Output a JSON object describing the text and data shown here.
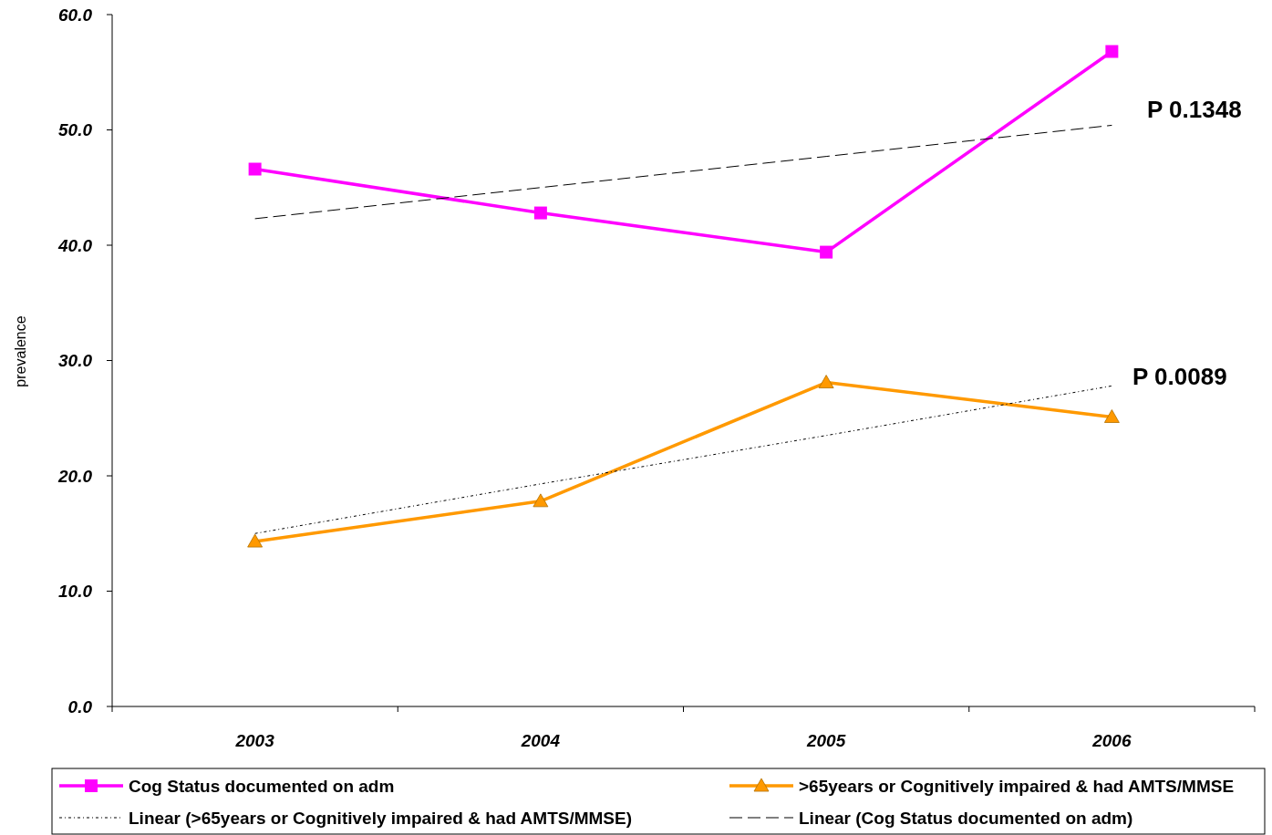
{
  "chart_data": {
    "type": "line",
    "ylabel": "prevalence",
    "categories": [
      "2003",
      "2004",
      "2005",
      "2006"
    ],
    "ylim": [
      0,
      60
    ],
    "yticks": [
      {
        "value": 0,
        "label": "0.0"
      },
      {
        "value": 10,
        "label": "10.0"
      },
      {
        "value": 20,
        "label": "20.0"
      },
      {
        "value": 30,
        "label": "30.0"
      },
      {
        "value": 40,
        "label": "40.0"
      },
      {
        "value": 50,
        "label": "50.0"
      },
      {
        "value": 60,
        "label": "60.0"
      }
    ],
    "series": [
      {
        "name": "Cog Status documented on adm",
        "color": "#ff00ff",
        "values": [
          46.6,
          42.8,
          39.4,
          56.8
        ],
        "marker": "square",
        "line_style": "solid"
      },
      {
        "name": ">65years or Cognitively impaired & had AMTS/MMSE",
        "color": "#ff9900",
        "values": [
          14.3,
          17.8,
          28.1,
          25.1
        ],
        "marker": "triangle",
        "line_style": "solid"
      },
      {
        "name": "Linear (>65years or Cognitively impaired & had AMTS/MMSE)",
        "color": "#000000",
        "values": [
          15.0,
          19.3,
          23.5,
          27.8
        ],
        "marker": "none",
        "line_style": "dotted"
      },
      {
        "name": "Linear (Cog Status documented on adm)",
        "color": "#000000",
        "values": [
          42.3,
          45.0,
          47.7,
          50.4
        ],
        "marker": "none",
        "line_style": "dashed"
      }
    ],
    "annotations": [
      "P 0.1348",
      "P 0.0089"
    ],
    "legend": "bottom",
    "grid": false
  }
}
